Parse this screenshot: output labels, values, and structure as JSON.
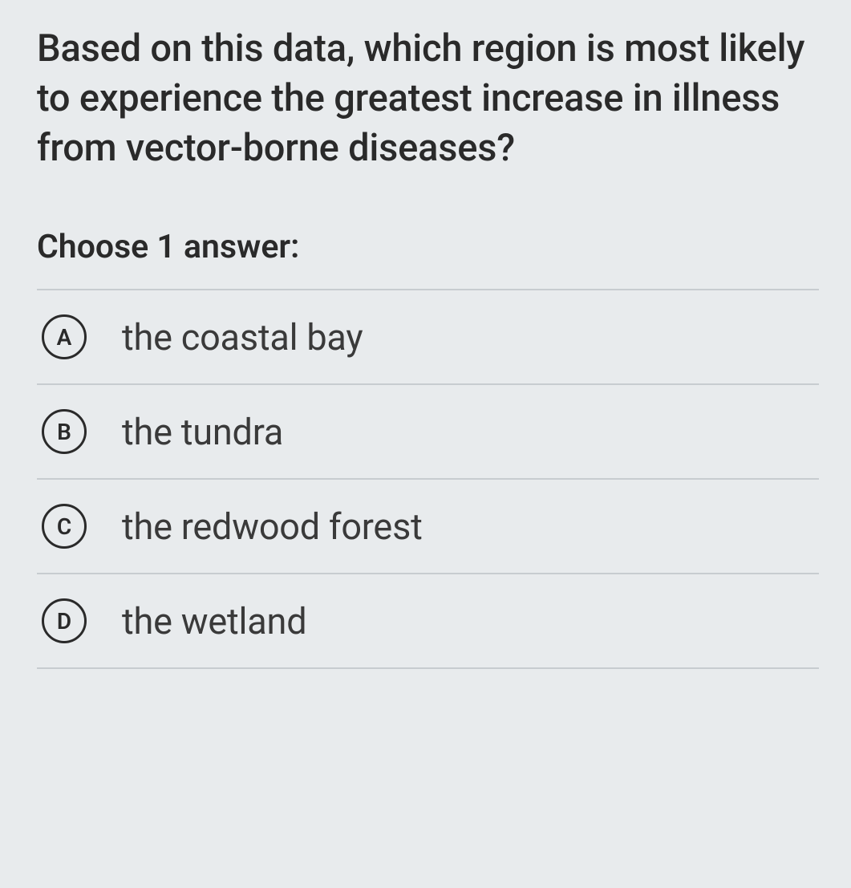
{
  "question": {
    "text": "Based on this data, which region is most likely to experience the greatest increase in illness from vector-borne diseases?",
    "choose_label": "Choose 1 answer:"
  },
  "options": [
    {
      "letter": "A",
      "text": "the coastal bay"
    },
    {
      "letter": "B",
      "text": "the tundra"
    },
    {
      "letter": "C",
      "text": "the redwood forest"
    },
    {
      "letter": "D",
      "text": "the wetland"
    }
  ],
  "colors": {
    "background": "#e8ebed",
    "text": "#2a2a2a",
    "divider": "#c7ccd0"
  }
}
